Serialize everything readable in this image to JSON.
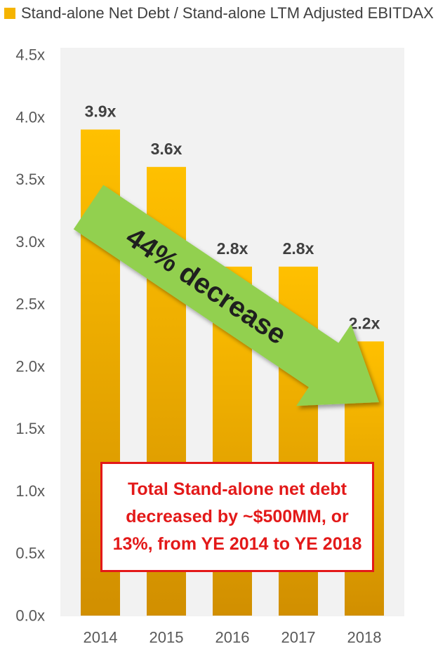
{
  "chart_data": {
    "type": "bar",
    "categories": [
      "2014",
      "2015",
      "2016",
      "2017",
      "2018"
    ],
    "series": [
      {
        "name": "Stand-alone Net Debt / Stand-alone LTM Adjusted EBITDAX",
        "values": [
          3.9,
          3.6,
          2.8,
          2.8,
          2.2
        ],
        "data_labels": [
          "3.9x",
          "3.6x",
          "2.8x",
          "2.8x",
          "2.2x"
        ]
      }
    ],
    "ylim": [
      0,
      4.5
    ],
    "y_ticks": [
      0,
      0.5,
      1.0,
      1.5,
      2.0,
      2.5,
      3.0,
      3.5,
      4.0,
      4.5
    ],
    "y_tick_labels": [
      "0.0x",
      "0.5x",
      "1.0x",
      "1.5x",
      "2.0x",
      "2.5x",
      "3.0x",
      "3.5x",
      "4.0x",
      "4.5x"
    ],
    "legend_position": "top-left",
    "grid": false,
    "annotations": {
      "arrow": {
        "text": "44% decrease",
        "from_category": "2014",
        "to_category": "2018"
      },
      "callout": "Total Stand-alone net debt\ndecreased by ~$500MM, or\n13%, from YE 2014 to YE 2018"
    }
  },
  "colors": {
    "bar_top": "#ffc000",
    "bar_bottom": "#d18f00",
    "legend_swatch": "#f5b400",
    "plot_background": "#f2f2f2",
    "arrow_fill": "#92d050",
    "callout_red": "#e31919"
  }
}
